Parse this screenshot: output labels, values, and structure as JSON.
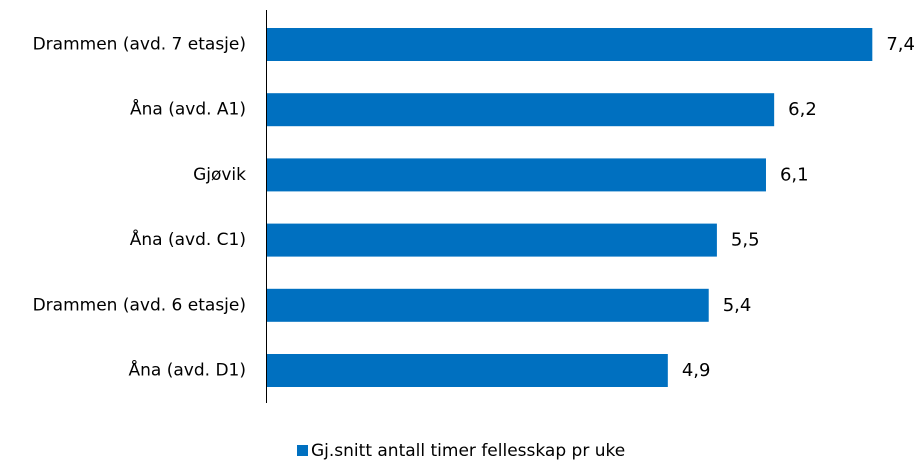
{
  "chart_data": {
    "type": "bar",
    "orientation": "horizontal",
    "categories": [
      "Drammen (avd. 7 etasje)",
      "Åna (avd. A1)",
      "Gjøvik",
      "Åna (avd. C1)",
      "Drammen (avd. 6 etasje)",
      "Åna (avd. D1)"
    ],
    "series": [
      {
        "name": "Gj.snitt antall timer fellesskap pr uke",
        "values": [
          7.4,
          6.2,
          6.1,
          5.5,
          5.4,
          4.9
        ],
        "labels": [
          "7,4",
          "6,2",
          "6,1",
          "5,5",
          "5,4",
          "4,9"
        ],
        "color": "#0070C0"
      }
    ],
    "title": "",
    "xlabel": "",
    "ylabel": "",
    "xlim": [
      0,
      8
    ],
    "grid": false,
    "legend": "bottom"
  }
}
